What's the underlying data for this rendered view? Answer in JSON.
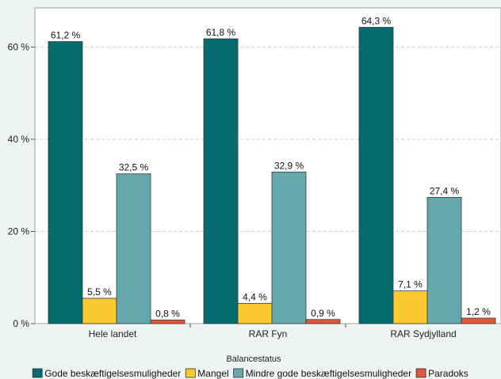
{
  "chart_data": {
    "type": "bar",
    "categories": [
      "Hele landet",
      "RAR Fyn",
      "RAR Sydjylland"
    ],
    "series": [
      {
        "name": "Gode beskæftigelsesmuligheder",
        "values": [
          61.2,
          61.8,
          64.3
        ],
        "labels": [
          "61,2 %",
          "61,8 %",
          "64,3 %"
        ],
        "color": "#046b6e"
      },
      {
        "name": "Mangel",
        "values": [
          5.5,
          4.4,
          7.1
        ],
        "labels": [
          "5,5 %",
          "4,4 %",
          "7,1 %"
        ],
        "color": "#fcc931"
      },
      {
        "name": "Mindre gode beskæftigelsesmuligheder",
        "values": [
          32.5,
          32.9,
          27.4
        ],
        "labels": [
          "32,5 %",
          "32,9 %",
          "27,4 %"
        ],
        "color": "#67a8ae"
      },
      {
        "name": "Paradoks",
        "values": [
          0.8,
          0.9,
          1.2
        ],
        "labels": [
          "0,8 %",
          "0,9 %",
          "1,2 %"
        ],
        "color": "#e2573a"
      }
    ],
    "y_ticks": [
      {
        "value": 0,
        "label": "0 %"
      },
      {
        "value": 20,
        "label": "20 %"
      },
      {
        "value": 40,
        "label": "40 %"
      },
      {
        "value": 60,
        "label": "60 %"
      }
    ],
    "ylim": [
      0,
      68.5
    ],
    "grid": true,
    "legend": {
      "title": "Balancestatus",
      "position": "bottom"
    }
  }
}
